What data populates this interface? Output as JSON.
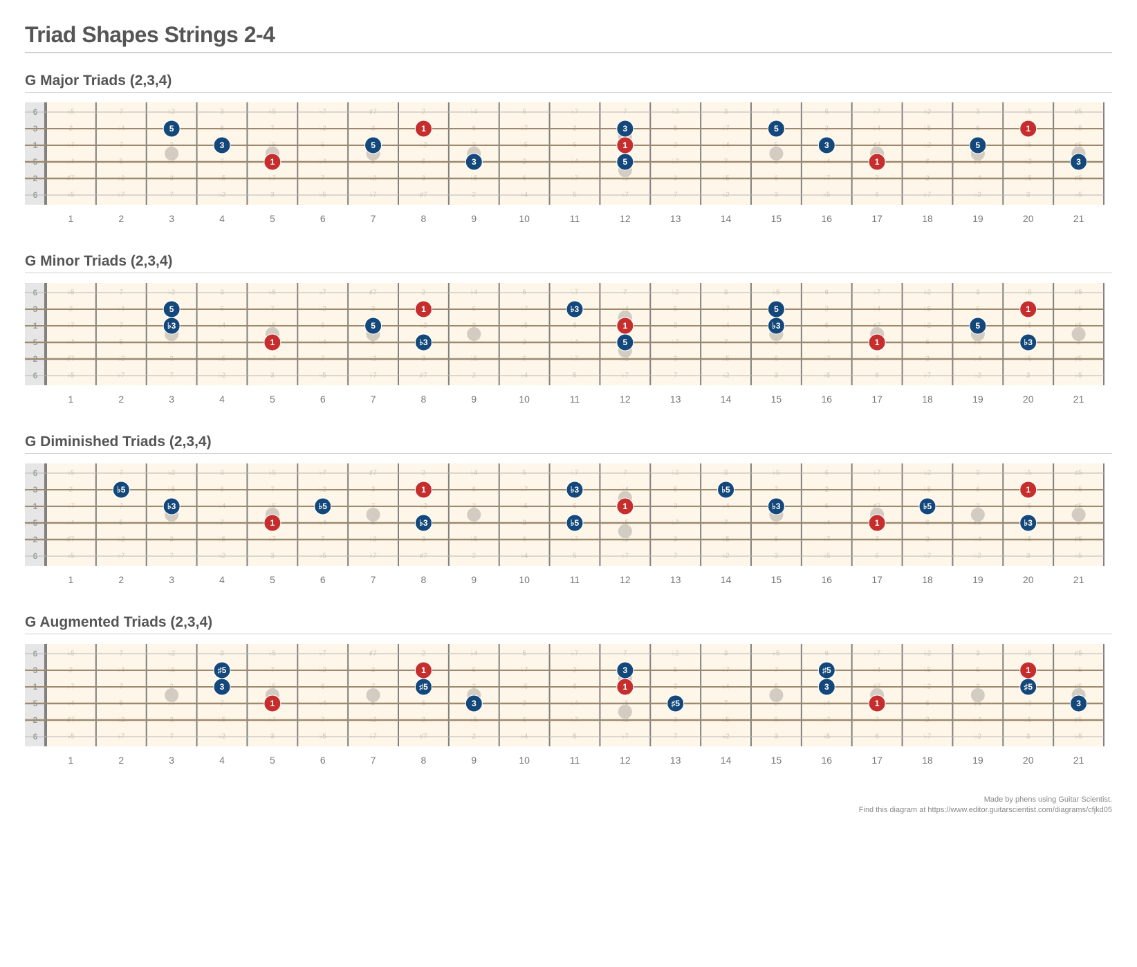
{
  "title": "Triad Shapes Strings 2-4",
  "footer": {
    "line1": "Made by phens using Guitar Scientist.",
    "line2": "Find this diagram at https://www.editor.guitarscientist.com/diagrams/cfjkd05"
  },
  "colors": {
    "root": "#c62e2e",
    "note": "#14487a",
    "noteText": "#ffffff",
    "ghost": "#d0cabb",
    "ghostText": "#d0cabb",
    "fretboard": "#fdf6e9",
    "fretWire": "#808080",
    "nut": "#999999",
    "stringLine": "#9c896f",
    "stringMuted": "#b8b8b8",
    "marker": "#d2ccc2",
    "fretNumber": "#777777",
    "stringNumber": "#9a9a9a",
    "stringNumberBg": "#e6e6e6"
  },
  "layout": {
    "frets": 21,
    "strings": 6,
    "singleMarkers": [
      3,
      5,
      7,
      9,
      15,
      17,
      19,
      21
    ],
    "doubleMarkers": [
      12
    ],
    "diagramWidth": 1560,
    "nutWidth": 30,
    "stringSpacing": 24,
    "stringTop": 14,
    "fretNumFont": 14,
    "dotRadius": 12,
    "markerRadius": 10,
    "stringLabels": [
      "6",
      "3",
      "1",
      "5",
      "2",
      "6"
    ]
  },
  "ghostNotes": {
    "1": [
      "♭5",
      "7",
      "♭2",
      "3",
      "♭5",
      "♭7",
      "♯7",
      "2",
      "♭4",
      "5",
      "♭7",
      "7",
      "♭2",
      "3",
      "♭5",
      "6",
      "♭7",
      "♭2",
      "3",
      "♭5",
      "♯5"
    ],
    "2": [
      "2",
      "♭4",
      "♭5",
      "6",
      "7",
      "♭2",
      "3",
      "5",
      "6",
      "♭7",
      "2",
      "♭4",
      "5",
      "♭7",
      "7",
      "2",
      "♭4",
      "♭5",
      "6",
      "♯5",
      "♭5"
    ],
    "3": [
      "♭7",
      "7",
      "2",
      "♭4",
      "♭5",
      "6",
      "7",
      "♭2",
      "3",
      "♭5",
      "6",
      "♭7",
      "2",
      "♭4",
      "5",
      "6",
      "♯7",
      "♭2",
      "3",
      "♭5",
      "♯5"
    ],
    "4": [
      "♭4",
      "5",
      "♭7",
      "7",
      "2",
      "♭4",
      "5",
      "6",
      "7",
      "2",
      "♭4",
      "♭5",
      "♭7",
      "7",
      "2",
      "♭4",
      "♭5",
      "6",
      "♯5",
      "♭2",
      "3"
    ],
    "5": [
      "♯7",
      "♭2",
      "3",
      "♭5",
      "♭7",
      "7",
      "♭2",
      "3",
      "♭5",
      "6",
      "♭7",
      "♭2",
      "3",
      "♭5",
      "6",
      "♭7",
      "7",
      "2",
      "♭4",
      "♭5",
      "♯5"
    ],
    "6": [
      "♭5",
      "♭7",
      "7",
      "♭2",
      "3",
      "♭5",
      "♭7",
      "♯7",
      "2",
      "♭4",
      "5",
      "♭7",
      "7",
      "♭2",
      "3",
      "♭5",
      "6",
      "♭7",
      "♭2",
      "3",
      "♭5"
    ]
  },
  "sections": [
    {
      "title": "G Major Triads (2,3,4)",
      "notes": [
        {
          "f": 3,
          "s": 2,
          "l": "5"
        },
        {
          "f": 4,
          "s": 3,
          "l": "3"
        },
        {
          "f": 5,
          "s": 4,
          "l": "1",
          "root": true
        },
        {
          "f": 7,
          "s": 3,
          "l": "5"
        },
        {
          "f": 8,
          "s": 2,
          "l": "1",
          "root": true
        },
        {
          "f": 9,
          "s": 4,
          "l": "3"
        },
        {
          "f": 12,
          "s": 2,
          "l": "3"
        },
        {
          "f": 12,
          "s": 3,
          "l": "1",
          "root": true
        },
        {
          "f": 12,
          "s": 4,
          "l": "5"
        },
        {
          "f": 15,
          "s": 2,
          "l": "5"
        },
        {
          "f": 16,
          "s": 3,
          "l": "3"
        },
        {
          "f": 17,
          "s": 4,
          "l": "1",
          "root": true
        },
        {
          "f": 19,
          "s": 3,
          "l": "5"
        },
        {
          "f": 20,
          "s": 2,
          "l": "1",
          "root": true
        },
        {
          "f": 21,
          "s": 4,
          "l": "3"
        }
      ]
    },
    {
      "title": "G Minor Triads (2,3,4)",
      "notes": [
        {
          "f": 3,
          "s": 2,
          "l": "5"
        },
        {
          "f": 3,
          "s": 3,
          "l": "♭3"
        },
        {
          "f": 5,
          "s": 4,
          "l": "1",
          "root": true
        },
        {
          "f": 7,
          "s": 3,
          "l": "5"
        },
        {
          "f": 8,
          "s": 2,
          "l": "1",
          "root": true
        },
        {
          "f": 8,
          "s": 4,
          "l": "♭3"
        },
        {
          "f": 11,
          "s": 2,
          "l": "♭3"
        },
        {
          "f": 12,
          "s": 3,
          "l": "1",
          "root": true
        },
        {
          "f": 12,
          "s": 4,
          "l": "5"
        },
        {
          "f": 15,
          "s": 2,
          "l": "5"
        },
        {
          "f": 15,
          "s": 3,
          "l": "♭3"
        },
        {
          "f": 17,
          "s": 4,
          "l": "1",
          "root": true
        },
        {
          "f": 19,
          "s": 3,
          "l": "5"
        },
        {
          "f": 20,
          "s": 2,
          "l": "1",
          "root": true
        },
        {
          "f": 20,
          "s": 4,
          "l": "♭3"
        }
      ]
    },
    {
      "title": "G Diminished Triads (2,3,4)",
      "notes": [
        {
          "f": 2,
          "s": 2,
          "l": "♭5"
        },
        {
          "f": 3,
          "s": 3,
          "l": "♭3"
        },
        {
          "f": 5,
          "s": 4,
          "l": "1",
          "root": true
        },
        {
          "f": 6,
          "s": 3,
          "l": "♭5"
        },
        {
          "f": 8,
          "s": 2,
          "l": "1",
          "root": true
        },
        {
          "f": 8,
          "s": 4,
          "l": "♭3"
        },
        {
          "f": 11,
          "s": 2,
          "l": "♭3"
        },
        {
          "f": 11,
          "s": 4,
          "l": "♭5"
        },
        {
          "f": 12,
          "s": 3,
          "l": "1",
          "root": true
        },
        {
          "f": 14,
          "s": 2,
          "l": "♭5"
        },
        {
          "f": 15,
          "s": 3,
          "l": "♭3"
        },
        {
          "f": 17,
          "s": 4,
          "l": "1",
          "root": true
        },
        {
          "f": 18,
          "s": 3,
          "l": "♭5"
        },
        {
          "f": 20,
          "s": 2,
          "l": "1",
          "root": true
        },
        {
          "f": 20,
          "s": 4,
          "l": "♭3"
        }
      ]
    },
    {
      "title": "G Augmented Triads (2,3,4)",
      "notes": [
        {
          "f": 4,
          "s": 2,
          "l": "♯5"
        },
        {
          "f": 4,
          "s": 3,
          "l": "3"
        },
        {
          "f": 5,
          "s": 4,
          "l": "1",
          "root": true
        },
        {
          "f": 8,
          "s": 2,
          "l": "1",
          "root": true
        },
        {
          "f": 8,
          "s": 3,
          "l": "♯5"
        },
        {
          "f": 9,
          "s": 4,
          "l": "3"
        },
        {
          "f": 12,
          "s": 2,
          "l": "3"
        },
        {
          "f": 12,
          "s": 3,
          "l": "1",
          "root": true
        },
        {
          "f": 13,
          "s": 4,
          "l": "♯5"
        },
        {
          "f": 16,
          "s": 2,
          "l": "♯5"
        },
        {
          "f": 16,
          "s": 3,
          "l": "3"
        },
        {
          "f": 17,
          "s": 4,
          "l": "1",
          "root": true
        },
        {
          "f": 20,
          "s": 2,
          "l": "1",
          "root": true
        },
        {
          "f": 20,
          "s": 3,
          "l": "♯5"
        },
        {
          "f": 21,
          "s": 4,
          "l": "3"
        }
      ]
    }
  ]
}
